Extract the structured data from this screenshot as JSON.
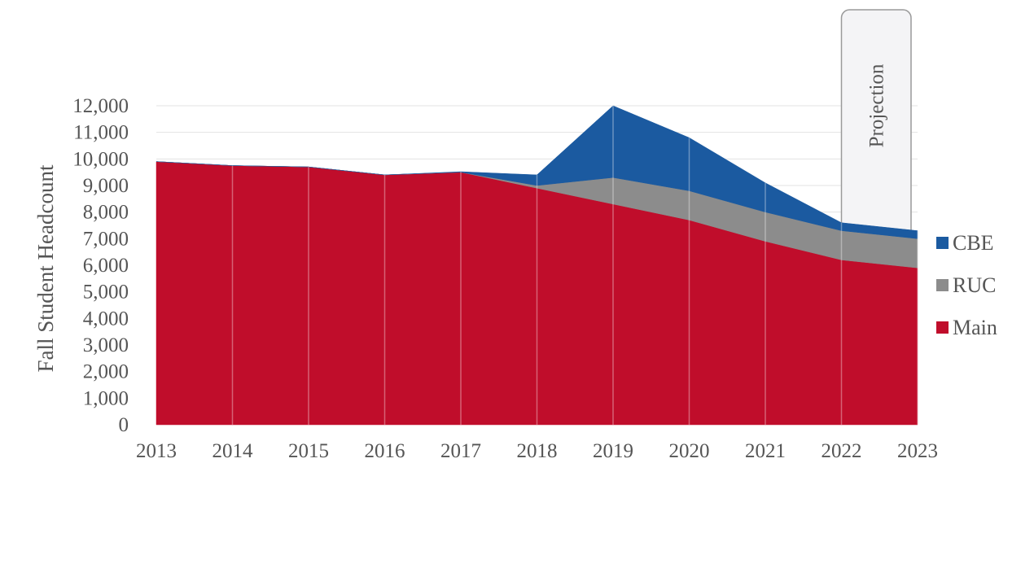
{
  "chart_data": {
    "type": "area",
    "stacked": true,
    "title": "",
    "xlabel": "",
    "ylabel": "Fall Student Headcount",
    "x": [
      "2013",
      "2014",
      "2015",
      "2016",
      "2017",
      "2018",
      "2019",
      "2020",
      "2021",
      "2022",
      "2023"
    ],
    "ylim": [
      0,
      12000
    ],
    "yticks": [
      0,
      1000,
      2000,
      3000,
      4000,
      5000,
      6000,
      7000,
      8000,
      9000,
      10000,
      11000,
      12000
    ],
    "ytick_labels": [
      "0",
      "1,000",
      "2,000",
      "3,000",
      "4,000",
      "5,000",
      "6,000",
      "7,000",
      "8,000",
      "9,000",
      "10,000",
      "11,000",
      "12,000"
    ],
    "series": [
      {
        "name": "Main",
        "color": "#c00d2b",
        "values": [
          9900,
          9750,
          9700,
          9400,
          9500,
          8900,
          8300,
          7700,
          6900,
          6200,
          5900
        ]
      },
      {
        "name": "RUC",
        "color": "#8c8c8c",
        "values": [
          0,
          0,
          0,
          0,
          0,
          100,
          1000,
          1100,
          1100,
          1100,
          1100
        ]
      },
      {
        "name": "CBE",
        "color": "#1b5aa0",
        "values": [
          0,
          0,
          0,
          0,
          20,
          400,
          2700,
          2000,
          1100,
          300,
          300
        ]
      }
    ],
    "legend_position": "right",
    "legend_order": [
      "CBE",
      "RUC",
      "Main"
    ],
    "grid": "horizontal",
    "annotations": [
      {
        "text": "Projection",
        "x_from": "2022",
        "x_to": "2023"
      }
    ]
  }
}
